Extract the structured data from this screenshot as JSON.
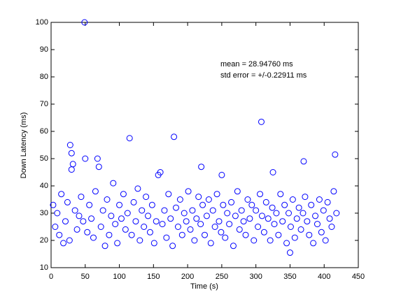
{
  "chart_data": {
    "type": "scatter",
    "x_label": "Time (s)",
    "y_label": "Down Latency (ms)",
    "annotations": [
      "mean = 28.94760 ms",
      "std error = +/-0.22911 ms"
    ],
    "color": "#0000ff",
    "xlim": [
      0,
      450
    ],
    "ylim": [
      10,
      100
    ],
    "xticks": [
      0,
      50,
      100,
      150,
      200,
      250,
      300,
      350,
      400,
      450
    ],
    "yticks": [
      10,
      20,
      30,
      40,
      50,
      60,
      70,
      80,
      90,
      100
    ],
    "x": [
      3,
      6,
      9,
      12,
      15,
      18,
      21,
      24,
      27,
      28,
      30,
      30,
      32,
      35,
      38,
      41,
      44,
      47,
      49,
      50,
      53,
      56,
      59,
      62,
      65,
      68,
      70,
      73,
      76,
      79,
      82,
      85,
      88,
      91,
      94,
      97,
      100,
      103,
      106,
      109,
      112,
      115,
      118,
      121,
      124,
      127,
      130,
      133,
      136,
      139,
      142,
      145,
      148,
      151,
      154,
      157,
      160,
      163,
      166,
      169,
      172,
      175,
      178,
      180,
      183,
      186,
      189,
      192,
      195,
      198,
      201,
      204,
      207,
      210,
      213,
      216,
      219,
      220,
      222,
      225,
      228,
      231,
      234,
      237,
      240,
      243,
      246,
      249,
      250,
      252,
      255,
      258,
      261,
      264,
      267,
      270,
      273,
      276,
      279,
      282,
      285,
      288,
      291,
      294,
      297,
      300,
      303,
      306,
      308,
      309,
      312,
      315,
      318,
      321,
      324,
      325,
      327,
      330,
      333,
      336,
      339,
      342,
      345,
      348,
      350,
      351,
      354,
      357,
      360,
      363,
      366,
      369,
      370,
      372,
      375,
      378,
      381,
      384,
      387,
      390,
      393,
      396,
      399,
      402,
      405,
      408,
      411,
      414,
      416,
      418
    ],
    "values": [
      33,
      25,
      30,
      22,
      37,
      19,
      27,
      34,
      20,
      55,
      52,
      46,
      48,
      31,
      24,
      29,
      36,
      27,
      100,
      50,
      23,
      33,
      28,
      21,
      38,
      50,
      47,
      25,
      31,
      18,
      35,
      22,
      29,
      41,
      26,
      19,
      33,
      28,
      37,
      24,
      30,
      57.5,
      22,
      34,
      27,
      39,
      20,
      31,
      25,
      36,
      29,
      23,
      33,
      19,
      27,
      44,
      45,
      26,
      31,
      21,
      37,
      28,
      18,
      58,
      32,
      25,
      35,
      22,
      30,
      27,
      38,
      24,
      31,
      20,
      28,
      36,
      26,
      47,
      33,
      22,
      29,
      35,
      19,
      31,
      25,
      37,
      27,
      23,
      44,
      33,
      21,
      30,
      26,
      34,
      18,
      29,
      38,
      24,
      31,
      27,
      22,
      35,
      28,
      33,
      20,
      31,
      25,
      37,
      63.5,
      29,
      23,
      34,
      28,
      20,
      32,
      45,
      26,
      30,
      22,
      37,
      27,
      33,
      19,
      30,
      15.5,
      25,
      35,
      21,
      28,
      32,
      24,
      30,
      49,
      36,
      27,
      22,
      33,
      19,
      29,
      26,
      35,
      23,
      31,
      20,
      34,
      28,
      25,
      38,
      51.5,
      30
    ]
  }
}
